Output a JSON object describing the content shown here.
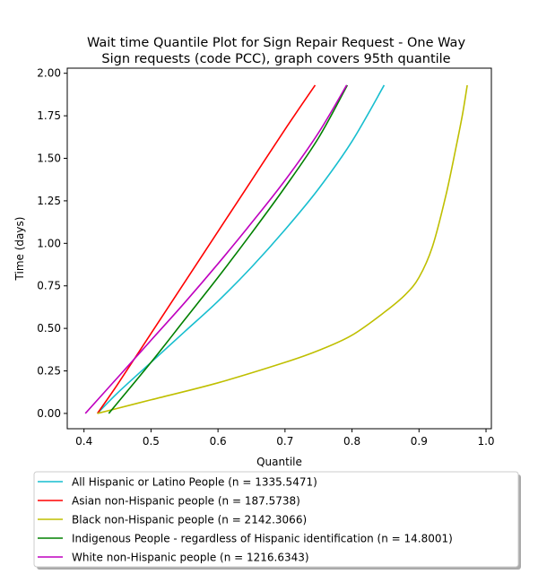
{
  "chart_data": {
    "type": "line",
    "title": "Wait time Quantile Plot for Sign Repair Request - One Way\nSign  requests (code PCC), graph covers 95th quantile",
    "xlabel": "Quantile",
    "ylabel": "Time (days)",
    "xlim": [
      0.375,
      1.008
    ],
    "ylim": [
      -0.09,
      2.03
    ],
    "xticks": [
      "0.4",
      "0.5",
      "0.6",
      "0.7",
      "0.8",
      "0.9",
      "1.0"
    ],
    "yticks": [
      "0.00",
      "0.25",
      "0.50",
      "0.75",
      "1.00",
      "1.25",
      "1.50",
      "1.75",
      "2.00"
    ],
    "grid": false,
    "legend_position": "below",
    "series": [
      {
        "name": "All Hispanic or Latino People (n = 1335.5471)",
        "color": "#17becf",
        "x": [
          0.42,
          0.45,
          0.5,
          0.55,
          0.6,
          0.65,
          0.7,
          0.75,
          0.8,
          0.848
        ],
        "y": [
          0.0,
          0.12,
          0.3,
          0.48,
          0.66,
          0.86,
          1.08,
          1.32,
          1.6,
          1.93
        ]
      },
      {
        "name": "Asian non-Hispanic people (n = 187.5738)",
        "color": "#ff0000",
        "x": [
          0.42,
          0.45,
          0.5,
          0.55,
          0.6,
          0.65,
          0.7,
          0.745
        ],
        "y": [
          0.0,
          0.17,
          0.47,
          0.77,
          1.07,
          1.37,
          1.67,
          1.93
        ]
      },
      {
        "name": "Black non-Hispanic people (n = 2142.3066)",
        "color": "#bfbf00",
        "x": [
          0.42,
          0.5,
          0.6,
          0.7,
          0.75,
          0.8,
          0.85,
          0.88,
          0.9,
          0.92,
          0.94,
          0.955,
          0.965,
          0.972
        ],
        "y": [
          0.0,
          0.08,
          0.18,
          0.3,
          0.37,
          0.46,
          0.6,
          0.7,
          0.8,
          0.98,
          1.28,
          1.56,
          1.76,
          1.93
        ]
      },
      {
        "name": "Indigenous People - regardless of Hispanic identification (n = 14.8001)",
        "color": "#008000",
        "x": [
          0.437,
          0.5,
          0.55,
          0.6,
          0.65,
          0.7,
          0.75,
          0.793
        ],
        "y": [
          0.0,
          0.3,
          0.55,
          0.8,
          1.06,
          1.33,
          1.62,
          1.93
        ]
      },
      {
        "name": "White non-Hispanic people (n = 1216.6343)",
        "color": "#bf00bf",
        "x": [
          0.402,
          0.45,
          0.5,
          0.55,
          0.6,
          0.65,
          0.7,
          0.75,
          0.792
        ],
        "y": [
          0.0,
          0.21,
          0.43,
          0.65,
          0.88,
          1.12,
          1.37,
          1.65,
          1.93
        ]
      }
    ]
  }
}
